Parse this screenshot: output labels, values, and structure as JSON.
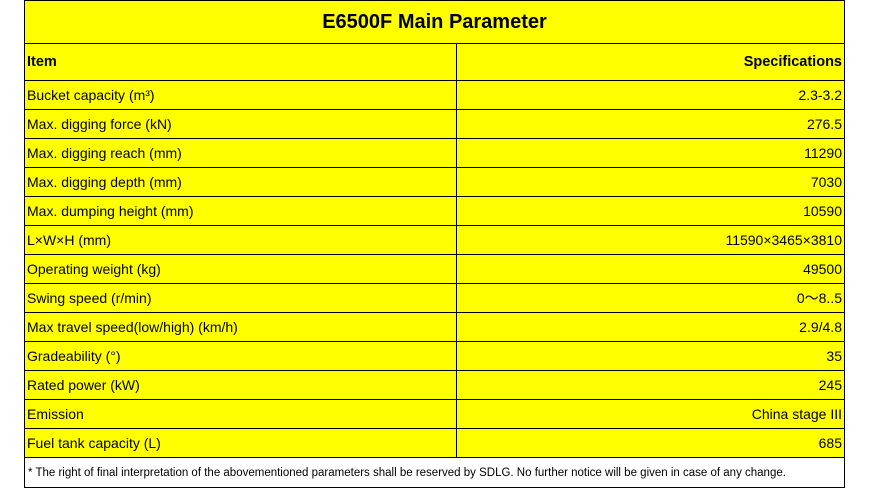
{
  "title": "E6500F Main Parameter",
  "header": {
    "item": "Item",
    "spec": "Specifications"
  },
  "rows": [
    {
      "item": "Bucket capacity (m³)",
      "value": "2.3-3.2"
    },
    {
      "item": "Max. digging force (kN)",
      "value": "276.5"
    },
    {
      "item": "Max. digging reach (mm)",
      "value": "11290"
    },
    {
      "item": "Max. digging depth (mm)",
      "value": "7030"
    },
    {
      "item": "Max. dumping height (mm)",
      "value": "10590"
    },
    {
      "item": "L×W×H (mm)",
      "value": "11590×3465×3810"
    },
    {
      "item": "Operating weight (kg)",
      "value": "49500"
    },
    {
      "item": "Swing speed (r/min)",
      "value": "0～8..5"
    },
    {
      "item": "Max travel speed(low/high) (km/h)",
      "value": "2.9/4.8"
    },
    {
      "item": "Gradeability (°)",
      "value": "35"
    },
    {
      "item": "Rated power (kW)",
      "value": "245"
    },
    {
      "item": "Emission",
      "value": "China stage III"
    },
    {
      "item": "Fuel tank capacity (L)",
      "value": "685"
    }
  ],
  "footnote": "*  The right of final interpretation of the abovementioned parameters shall be reserved by SDLG. No further notice will be given in case of any change.",
  "colors": {
    "table_bg": "#ffff00",
    "border": "#000000"
  }
}
